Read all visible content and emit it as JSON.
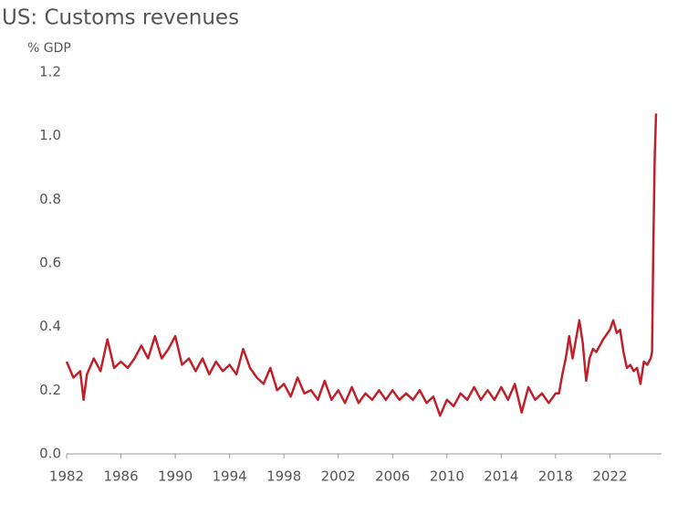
{
  "chart_data": {
    "type": "line",
    "title": "US: Customs revenues",
    "y_label": "% GDP",
    "xlim": [
      1982,
      2025.6
    ],
    "xticks": [
      1982,
      1986,
      1990,
      1994,
      1998,
      2002,
      2006,
      2010,
      2014,
      2018,
      2022
    ],
    "ylim": [
      0,
      1.2
    ],
    "yticks": [
      {
        "value": 0,
        "label": "0.0"
      },
      0.2,
      0.4,
      0.6,
      0.8,
      {
        "value": 1,
        "label": "1.0"
      },
      1.2
    ],
    "grid": false,
    "series": [
      {
        "name": "Customs revenues",
        "color": "#c0202a",
        "x": [
          1982,
          1982.5,
          1983,
          1983.25,
          1983.5,
          1984,
          1984.5,
          1985,
          1985.5,
          1986,
          1986.5,
          1987,
          1987.5,
          1988,
          1988.5,
          1989,
          1989.5,
          1990,
          1990.5,
          1991,
          1991.5,
          1992,
          1992.5,
          1993,
          1993.5,
          1994,
          1994.5,
          1995,
          1995.5,
          1996,
          1996.5,
          1997,
          1997.5,
          1998,
          1998.5,
          1999,
          1999.5,
          2000,
          2000.5,
          2001,
          2001.5,
          2002,
          2002.5,
          2003,
          2003.5,
          2004,
          2004.5,
          2005,
          2005.5,
          2006,
          2006.5,
          2007,
          2007.5,
          2008,
          2008.5,
          2009,
          2009.5,
          2010,
          2010.5,
          2011,
          2011.5,
          2012,
          2012.5,
          2013,
          2013.5,
          2014,
          2014.5,
          2015,
          2015.5,
          2016,
          2016.5,
          2017,
          2017.5,
          2018,
          2018.25,
          2018.5,
          2018.75,
          2019,
          2019.25,
          2019.5,
          2019.75,
          2020,
          2020.25,
          2020.5,
          2020.75,
          2021,
          2021.5,
          2022,
          2022.25,
          2022.5,
          2022.75,
          2023,
          2023.25,
          2023.5,
          2023.75,
          2024,
          2024.25,
          2024.5,
          2024.75,
          2025,
          2025.1,
          2025.2,
          2025.3,
          2025.4
        ],
        "values": [
          0.29,
          0.24,
          0.26,
          0.17,
          0.25,
          0.3,
          0.26,
          0.36,
          0.27,
          0.29,
          0.27,
          0.3,
          0.34,
          0.3,
          0.37,
          0.3,
          0.33,
          0.37,
          0.28,
          0.3,
          0.26,
          0.3,
          0.25,
          0.29,
          0.26,
          0.28,
          0.25,
          0.33,
          0.27,
          0.24,
          0.22,
          0.27,
          0.2,
          0.22,
          0.18,
          0.24,
          0.19,
          0.2,
          0.17,
          0.23,
          0.17,
          0.2,
          0.16,
          0.21,
          0.16,
          0.19,
          0.17,
          0.2,
          0.17,
          0.2,
          0.17,
          0.19,
          0.17,
          0.2,
          0.16,
          0.18,
          0.12,
          0.17,
          0.15,
          0.19,
          0.17,
          0.21,
          0.17,
          0.2,
          0.17,
          0.21,
          0.17,
          0.22,
          0.13,
          0.21,
          0.17,
          0.19,
          0.16,
          0.19,
          0.19,
          0.25,
          0.3,
          0.37,
          0.3,
          0.36,
          0.42,
          0.35,
          0.23,
          0.3,
          0.33,
          0.32,
          0.36,
          0.39,
          0.42,
          0.38,
          0.39,
          0.32,
          0.27,
          0.28,
          0.26,
          0.27,
          0.22,
          0.29,
          0.28,
          0.3,
          0.32,
          0.65,
          0.93,
          1.07
        ]
      }
    ]
  }
}
